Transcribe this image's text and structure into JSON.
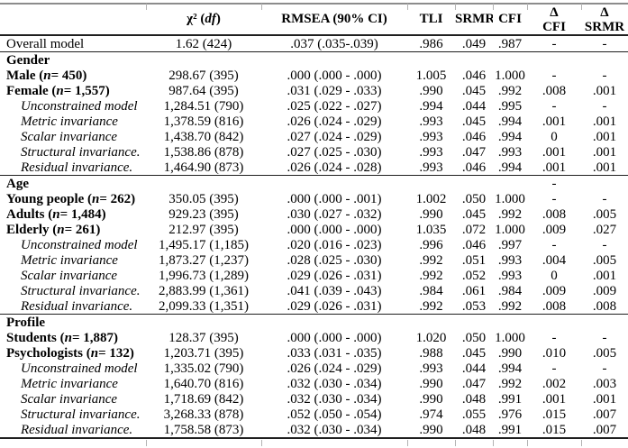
{
  "table": {
    "columns": {
      "chi_pre": "χ² (",
      "chi_df": "df",
      "chi_post": ")",
      "rmsea": "RMSEA (90% CI)",
      "tli": "TLI",
      "srmr": "SRMR",
      "cfi": "CFI",
      "delta": "Δ",
      "delta_cfi": "CFI",
      "delta_srmr": "SRMR"
    },
    "rows": [
      {
        "style": "plain",
        "rule": false,
        "pre": "Overall model",
        "n": "",
        "post": "",
        "chi": "1.62 (424)",
        "rmsea": ".037 (.035-.039)",
        "tli": ".986",
        "srmr": ".049",
        "cfi": ".987",
        "dcfi": "-",
        "dsrmr": "-"
      },
      {
        "style": "section",
        "rule": true,
        "pre": "Gender",
        "n": "",
        "post": "",
        "chi": "",
        "rmsea": "",
        "tli": "",
        "srmr": "",
        "cfi": "",
        "dcfi": "",
        "dsrmr": ""
      },
      {
        "style": "group",
        "rule": false,
        "pre": "Male (",
        "n": "n",
        "post": "= 450)",
        "chi": "298.67 (395)",
        "rmsea": ".000 (.000 - .000)",
        "tli": "1.005",
        "srmr": ".046",
        "cfi": "1.000",
        "dcfi": "-",
        "dsrmr": "-"
      },
      {
        "style": "group",
        "rule": false,
        "pre": "Female (",
        "n": "n",
        "post": "= 1,557)",
        "chi": "987.64 (395)",
        "rmsea": ".031 (.029 - .033)",
        "tli": ".990",
        "srmr": ".045",
        "cfi": ".992",
        "dcfi": ".008",
        "dsrmr": ".001"
      },
      {
        "style": "indent",
        "rule": false,
        "pre": "Unconstrained model",
        "n": "",
        "post": "",
        "chi": "1,284.51 (790)",
        "rmsea": ".025 (.022 - .027)",
        "tli": ".994",
        "srmr": ".044",
        "cfi": ".995",
        "dcfi": "-",
        "dsrmr": "-"
      },
      {
        "style": "indent",
        "rule": false,
        "pre": "Metric invariance",
        "n": "",
        "post": "",
        "chi": "1,378.59 (816)",
        "rmsea": ".026 (.024 - .029)",
        "tli": ".993",
        "srmr": ".045",
        "cfi": ".994",
        "dcfi": ".001",
        "dsrmr": ".001"
      },
      {
        "style": "indent",
        "rule": false,
        "pre": "Scalar invariance",
        "n": "",
        "post": "",
        "chi": "1,438.70 (842)",
        "rmsea": ".027 (.024 - .029)",
        "tli": ".993",
        "srmr": ".046",
        "cfi": ".994",
        "dcfi": "0",
        "dsrmr": ".001"
      },
      {
        "style": "indent",
        "rule": false,
        "pre": "Structural invariance.",
        "n": "",
        "post": "",
        "chi": "1,538.86 (878)",
        "rmsea": ".027 (.025 - .030)",
        "tli": ".993",
        "srmr": ".047",
        "cfi": ".993",
        "dcfi": ".001",
        "dsrmr": ".001"
      },
      {
        "style": "indent",
        "rule": false,
        "pre": "Residual invariance.",
        "n": "",
        "post": "",
        "chi": "1,464.90 (873)",
        "rmsea": ".026 (.024 - .028)",
        "tli": ".993",
        "srmr": ".046",
        "cfi": ".994",
        "dcfi": ".001",
        "dsrmr": ".001"
      },
      {
        "style": "section",
        "rule": true,
        "pre": "Age",
        "n": "",
        "post": "",
        "chi": "",
        "rmsea": "",
        "tli": "",
        "srmr": "",
        "cfi": "",
        "dcfi": "-",
        "dsrmr": ""
      },
      {
        "style": "group",
        "rule": false,
        "pre": "Young people (",
        "n": "n",
        "post": "= 262)",
        "chi": "350.05 (395)",
        "rmsea": ".000 (.000 - .001)",
        "tli": "1.002",
        "srmr": ".050",
        "cfi": "1.000",
        "dcfi": "-",
        "dsrmr": "-"
      },
      {
        "style": "group",
        "rule": false,
        "pre": "Adults (",
        "n": "n",
        "post": "= 1,484)",
        "chi": "929.23 (395)",
        "rmsea": ".030 (.027 - .032)",
        "tli": ".990",
        "srmr": ".045",
        "cfi": ".992",
        "dcfi": ".008",
        "dsrmr": ".005"
      },
      {
        "style": "group",
        "rule": false,
        "pre": "Elderly (",
        "n": "n",
        "post": "= 261)",
        "chi": "212.97 (395)",
        "rmsea": ".000 (.000 - .000)",
        "tli": "1.035",
        "srmr": ".072",
        "cfi": "1.000",
        "dcfi": ".009",
        "dsrmr": ".027"
      },
      {
        "style": "indent",
        "rule": false,
        "pre": "Unconstrained model",
        "n": "",
        "post": "",
        "chi": "1,495.17 (1,185)",
        "rmsea": ".020 (.016 - .023)",
        "tli": ".996",
        "srmr": ".046",
        "cfi": ".997",
        "dcfi": "-",
        "dsrmr": "-"
      },
      {
        "style": "indent",
        "rule": false,
        "pre": "Metric invariance",
        "n": "",
        "post": "",
        "chi": "1,873.27 (1,237)",
        "rmsea": ".028 (.025 - .030)",
        "tli": ".992",
        "srmr": ".051",
        "cfi": ".993",
        "dcfi": ".004",
        "dsrmr": ".005"
      },
      {
        "style": "indent",
        "rule": false,
        "pre": "Scalar invariance",
        "n": "",
        "post": "",
        "chi": "1,996.73 (1,289)",
        "rmsea": ".029 (.026 - .031)",
        "tli": ".992",
        "srmr": ".052",
        "cfi": ".993",
        "dcfi": "0",
        "dsrmr": ".001"
      },
      {
        "style": "indent",
        "rule": false,
        "pre": "Structural invariance.",
        "n": "",
        "post": "",
        "chi": "2,883.99 (1,361)",
        "rmsea": ".041 (.039 - .043)",
        "tli": ".984",
        "srmr": ".061",
        "cfi": ".984",
        "dcfi": ".009",
        "dsrmr": ".009"
      },
      {
        "style": "indent",
        "rule": false,
        "pre": "Residual invariance.",
        "n": "",
        "post": "",
        "chi": "2,099.33 (1,351)",
        "rmsea": ".029 (.026 - .031)",
        "tli": ".992",
        "srmr": ".053",
        "cfi": ".992",
        "dcfi": ".008",
        "dsrmr": ".008"
      },
      {
        "style": "section",
        "rule": true,
        "pre": "Profile",
        "n": "",
        "post": "",
        "chi": "",
        "rmsea": "",
        "tli": "",
        "srmr": "",
        "cfi": "",
        "dcfi": "",
        "dsrmr": ""
      },
      {
        "style": "group",
        "rule": false,
        "pre": "Students (",
        "n": "n",
        "post": "= 1,887)",
        "chi": "128.37 (395)",
        "rmsea": ".000 (.000 - .000)",
        "tli": "1.020",
        "srmr": ".050",
        "cfi": "1.000",
        "dcfi": "-",
        "dsrmr": "-"
      },
      {
        "style": "group",
        "rule": false,
        "pre": "Psychologists (",
        "n": "n",
        "post": "= 132)",
        "chi": "1,203.71 (395)",
        "rmsea": ".033 (.031 - .035)",
        "tli": ".988",
        "srmr": ".045",
        "cfi": ".990",
        "dcfi": ".010",
        "dsrmr": ".005"
      },
      {
        "style": "indent",
        "rule": false,
        "pre": "Unconstrained model",
        "n": "",
        "post": "",
        "chi": "1,335.02 (790)",
        "rmsea": ".026 (.024 - .029)",
        "tli": ".993",
        "srmr": ".044",
        "cfi": ".994",
        "dcfi": "-",
        "dsrmr": "-"
      },
      {
        "style": "indent",
        "rule": false,
        "pre": "Metric invariance",
        "n": "",
        "post": "",
        "chi": "1,640.70 (816)",
        "rmsea": ".032 (.030 - .034)",
        "tli": ".990",
        "srmr": ".047",
        "cfi": ".992",
        "dcfi": ".002",
        "dsrmr": ".003"
      },
      {
        "style": "indent",
        "rule": false,
        "pre": "Scalar invariance",
        "n": "",
        "post": "",
        "chi": "1,718.69 (842)",
        "rmsea": ".032 (.030 - .034)",
        "tli": ".990",
        "srmr": ".048",
        "cfi": ".991",
        "dcfi": ".001",
        "dsrmr": ".001"
      },
      {
        "style": "indent",
        "rule": false,
        "pre": "Structural invariance.",
        "n": "",
        "post": "",
        "chi": "3,268.33 (878)",
        "rmsea": ".052 (.050 - .054)",
        "tli": ".974",
        "srmr": ".055",
        "cfi": ".976",
        "dcfi": ".015",
        "dsrmr": ".007"
      },
      {
        "style": "indent",
        "rule": false,
        "pre": "Residual invariance.",
        "n": "",
        "post": "",
        "chi": "1,758.58 (873)",
        "rmsea": ".032 (.030 - .034)",
        "tli": ".990",
        "srmr": ".048",
        "cfi": ".991",
        "dcfi": ".015",
        "dsrmr": ".007"
      }
    ]
  },
  "colors": {
    "rule_dark": "#1f1f1f",
    "rule_gray": "#8c8c8c",
    "tick_gray": "#b3b3b3",
    "text": "#000000"
  }
}
